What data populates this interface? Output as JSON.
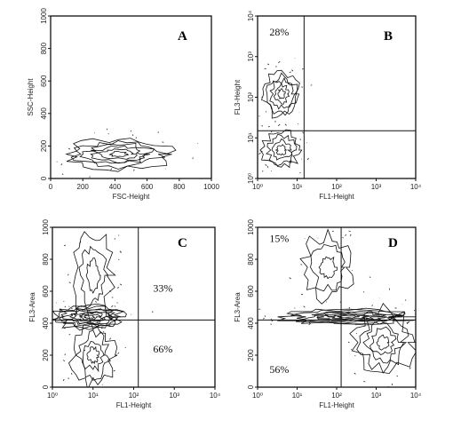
{
  "chart_data": [
    {
      "type": "contour",
      "panel": "A",
      "xlabel": "FSC-Height",
      "ylabel": "SSC-Height",
      "xscale": "linear",
      "yscale": "linear",
      "xlim": [
        0,
        1000
      ],
      "ylim": [
        0,
        1000
      ],
      "xticks": [
        "0",
        "200",
        "400",
        "600",
        "800",
        "1000"
      ],
      "yticks": [
        "0",
        "200",
        "400",
        "600",
        "800",
        "1000"
      ],
      "contours": [
        {
          "cx": 420,
          "cy": 150,
          "rx": 310,
          "ry": 90,
          "levels": 6
        }
      ],
      "quadrant_lines": null,
      "annotations": []
    },
    {
      "type": "contour",
      "panel": "B",
      "xlabel": "FL1-Height",
      "ylabel": "FL3-Height",
      "xscale": "log",
      "yscale": "log",
      "xlim": [
        1,
        10000
      ],
      "ylim": [
        1,
        10000
      ],
      "xticks": [
        "10⁰",
        "10¹",
        "10²",
        "10³",
        "10⁴"
      ],
      "yticks": [
        "10⁰",
        "10¹",
        "10²",
        "10³",
        "10⁴"
      ],
      "contours": [
        {
          "cx": 4,
          "cy": 120,
          "rx": 0.45,
          "ry": 0.55,
          "levels": 5
        },
        {
          "cx": 4,
          "cy": 5,
          "rx": 0.45,
          "ry": 0.45,
          "levels": 4
        }
      ],
      "quadrant_lines": {
        "x": 15,
        "y": 15
      },
      "annotations": [
        {
          "text": "28%",
          "x": 2,
          "y": 4000
        }
      ]
    },
    {
      "type": "contour",
      "panel": "C",
      "xlabel": "FL1-Height",
      "ylabel": "FL3-Area",
      "xscale": "log",
      "yscale": "linear",
      "xlim": [
        1,
        10000
      ],
      "ylim": [
        0,
        1000
      ],
      "xticks": [
        "10⁰",
        "10¹",
        "10²",
        "10³",
        "10⁴"
      ],
      "yticks": [
        "0",
        "200",
        "400",
        "600",
        "800",
        "1000"
      ],
      "contours": [
        {
          "cx": 8,
          "cy": 440,
          "rx": 0.9,
          "ry": 75,
          "levels": 8
        },
        {
          "cx": 10,
          "cy": 700,
          "rx": 0.45,
          "ry": 280,
          "levels": 3
        },
        {
          "cx": 10,
          "cy": 200,
          "rx": 0.5,
          "ry": 180,
          "levels": 4
        }
      ],
      "quadrant_lines": {
        "x": 130,
        "y": 420
      },
      "annotations": [
        {
          "text": "33%",
          "x": 300,
          "y": 620
        },
        {
          "text": "66%",
          "x": 300,
          "y": 240
        }
      ]
    },
    {
      "type": "contour",
      "panel": "D",
      "xlabel": "FL1-Height",
      "ylabel": "FL3-Area",
      "xscale": "log",
      "yscale": "linear",
      "xlim": [
        1,
        10000
      ],
      "ylim": [
        0,
        1000
      ],
      "xticks": [
        "10⁰",
        "10¹",
        "10²",
        "10³",
        "10⁴"
      ],
      "yticks": [
        "0",
        "200",
        "400",
        "600",
        "800",
        "1000"
      ],
      "contours": [
        {
          "cx": 200,
          "cy": 440,
          "rx": 1.6,
          "ry": 45,
          "levels": 7
        },
        {
          "cx": 1500,
          "cy": 280,
          "rx": 0.7,
          "ry": 200,
          "levels": 5
        },
        {
          "cx": 60,
          "cy": 750,
          "rx": 0.6,
          "ry": 200,
          "levels": 3
        }
      ],
      "quadrant_lines": {
        "x": 130,
        "y": 420
      },
      "annotations": [
        {
          "text": "15%",
          "x": 2,
          "y": 930
        },
        {
          "text": "56%",
          "x": 2,
          "y": 110
        }
      ]
    }
  ]
}
